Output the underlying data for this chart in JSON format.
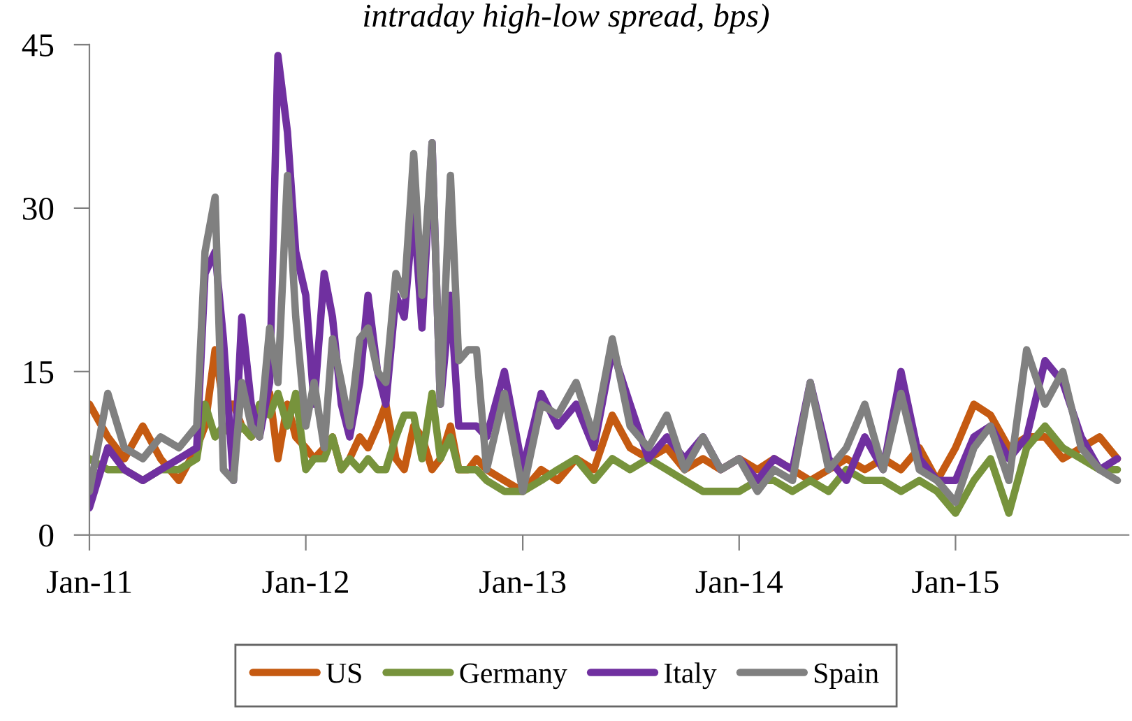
{
  "chart_data": {
    "type": "line",
    "title": "intraday high-low spread, bps)",
    "x": [
      "2011-01-01",
      "2011-02-01",
      "2011-03-01",
      "2011-04-01",
      "2011-05-01",
      "2011-06-01",
      "2011-07-01",
      "2011-07-15",
      "2011-08-01",
      "2011-08-15",
      "2011-09-01",
      "2011-09-15",
      "2011-10-01",
      "2011-10-15",
      "2011-11-01",
      "2011-11-15",
      "2011-12-01",
      "2011-12-15",
      "2012-01-01",
      "2012-01-15",
      "2012-02-01",
      "2012-02-15",
      "2012-03-01",
      "2012-03-15",
      "2012-04-01",
      "2012-04-15",
      "2012-05-01",
      "2012-05-15",
      "2012-06-01",
      "2012-06-15",
      "2012-07-01",
      "2012-07-15",
      "2012-08-01",
      "2012-08-15",
      "2012-09-01",
      "2012-09-15",
      "2012-10-01",
      "2012-10-15",
      "2012-11-01",
      "2012-12-01",
      "2013-01-01",
      "2013-02-01",
      "2013-03-01",
      "2013-04-01",
      "2013-05-01",
      "2013-06-01",
      "2013-07-01",
      "2013-08-01",
      "2013-09-01",
      "2013-10-01",
      "2013-11-01",
      "2013-12-01",
      "2014-01-01",
      "2014-02-01",
      "2014-03-01",
      "2014-04-01",
      "2014-05-01",
      "2014-06-01",
      "2014-07-01",
      "2014-08-01",
      "2014-09-01",
      "2014-10-01",
      "2014-11-01",
      "2014-12-01",
      "2015-01-01",
      "2015-02-01",
      "2015-03-01",
      "2015-04-01",
      "2015-05-01",
      "2015-06-01",
      "2015-07-01",
      "2015-08-01",
      "2015-09-01",
      "2015-10-01"
    ],
    "series": [
      {
        "name": "US",
        "color": "#c55a11",
        "values": [
          12,
          9,
          7,
          10,
          7,
          5,
          8,
          10,
          17,
          12,
          12,
          10,
          9,
          10,
          13,
          7,
          12,
          9,
          8,
          7,
          8,
          9,
          6,
          7,
          9,
          8,
          10,
          12,
          7,
          6,
          10,
          9,
          6,
          7,
          10,
          6,
          6,
          7,
          6,
          5,
          4,
          6,
          5,
          7,
          6,
          11,
          8,
          7,
          8,
          6,
          7,
          6,
          7,
          6,
          7,
          6,
          5,
          6,
          7,
          6,
          7,
          6,
          8,
          5,
          8,
          12,
          11,
          8,
          9,
          9,
          7,
          8,
          9,
          7
        ]
      },
      {
        "name": "Germany",
        "color": "#77933c",
        "values": [
          7,
          6,
          6,
          5,
          6,
          6,
          7,
          12,
          9,
          10,
          9,
          10,
          9,
          12,
          11,
          13,
          10,
          13,
          6,
          7,
          7,
          9,
          6,
          7,
          6,
          7,
          6,
          6,
          9,
          11,
          11,
          7,
          13,
          7,
          9,
          6,
          6,
          6,
          5,
          4,
          4,
          5,
          6,
          7,
          5,
          7,
          6,
          7,
          6,
          5,
          4,
          4,
          4,
          5,
          5,
          4,
          5,
          4,
          6,
          5,
          5,
          4,
          5,
          4,
          2,
          5,
          7,
          2,
          8,
          10,
          8,
          7,
          6,
          6
        ]
      },
      {
        "name": "Italy",
        "color": "#7030a0",
        "values": [
          2.5,
          8,
          6,
          5,
          6,
          7,
          8,
          24,
          26,
          18,
          5,
          20,
          12,
          9,
          14,
          44,
          37,
          26,
          22,
          12,
          24,
          20,
          12,
          9,
          14,
          22,
          15,
          12,
          22,
          20,
          30,
          19,
          36,
          12,
          22,
          10,
          10,
          10,
          9,
          15,
          6,
          13,
          10,
          12,
          8,
          17,
          12,
          7,
          9,
          7,
          9,
          6,
          7,
          5,
          7,
          6,
          14,
          7,
          5,
          9,
          6,
          15,
          7,
          5,
          5,
          9,
          10,
          7,
          9,
          16,
          14,
          9,
          6,
          7
        ]
      },
      {
        "name": "Spain",
        "color": "#808080",
        "values": [
          4,
          13,
          8,
          7,
          9,
          8,
          10,
          26,
          31,
          6,
          5,
          14,
          10,
          9,
          19,
          14,
          33,
          20,
          10,
          14,
          8,
          18,
          14,
          10,
          18,
          19,
          15,
          14,
          24,
          22,
          35,
          22,
          36,
          12,
          33,
          16,
          17,
          17,
          6,
          13,
          4,
          12,
          11,
          14,
          9,
          18,
          10,
          8,
          11,
          6,
          9,
          6,
          7,
          4,
          6,
          5,
          14,
          6,
          8,
          12,
          6,
          13,
          6,
          5,
          3,
          8,
          10,
          5,
          17,
          12,
          15,
          8,
          6,
          5
        ]
      }
    ],
    "xlim": [
      "2011-01-01",
      "2015-10-20"
    ],
    "xticks": [
      {
        "value": "2011-01-01",
        "label": "Jan-11"
      },
      {
        "value": "2012-01-01",
        "label": "Jan-12"
      },
      {
        "value": "2013-01-01",
        "label": "Jan-13"
      },
      {
        "value": "2014-01-01",
        "label": "Jan-14"
      },
      {
        "value": "2015-01-01",
        "label": "Jan-15"
      }
    ],
    "ylim": [
      0,
      45
    ],
    "yticks": [
      0,
      15,
      30,
      45
    ],
    "grid": false,
    "legend": "bottom",
    "marker": "none",
    "line_style": "solid"
  }
}
